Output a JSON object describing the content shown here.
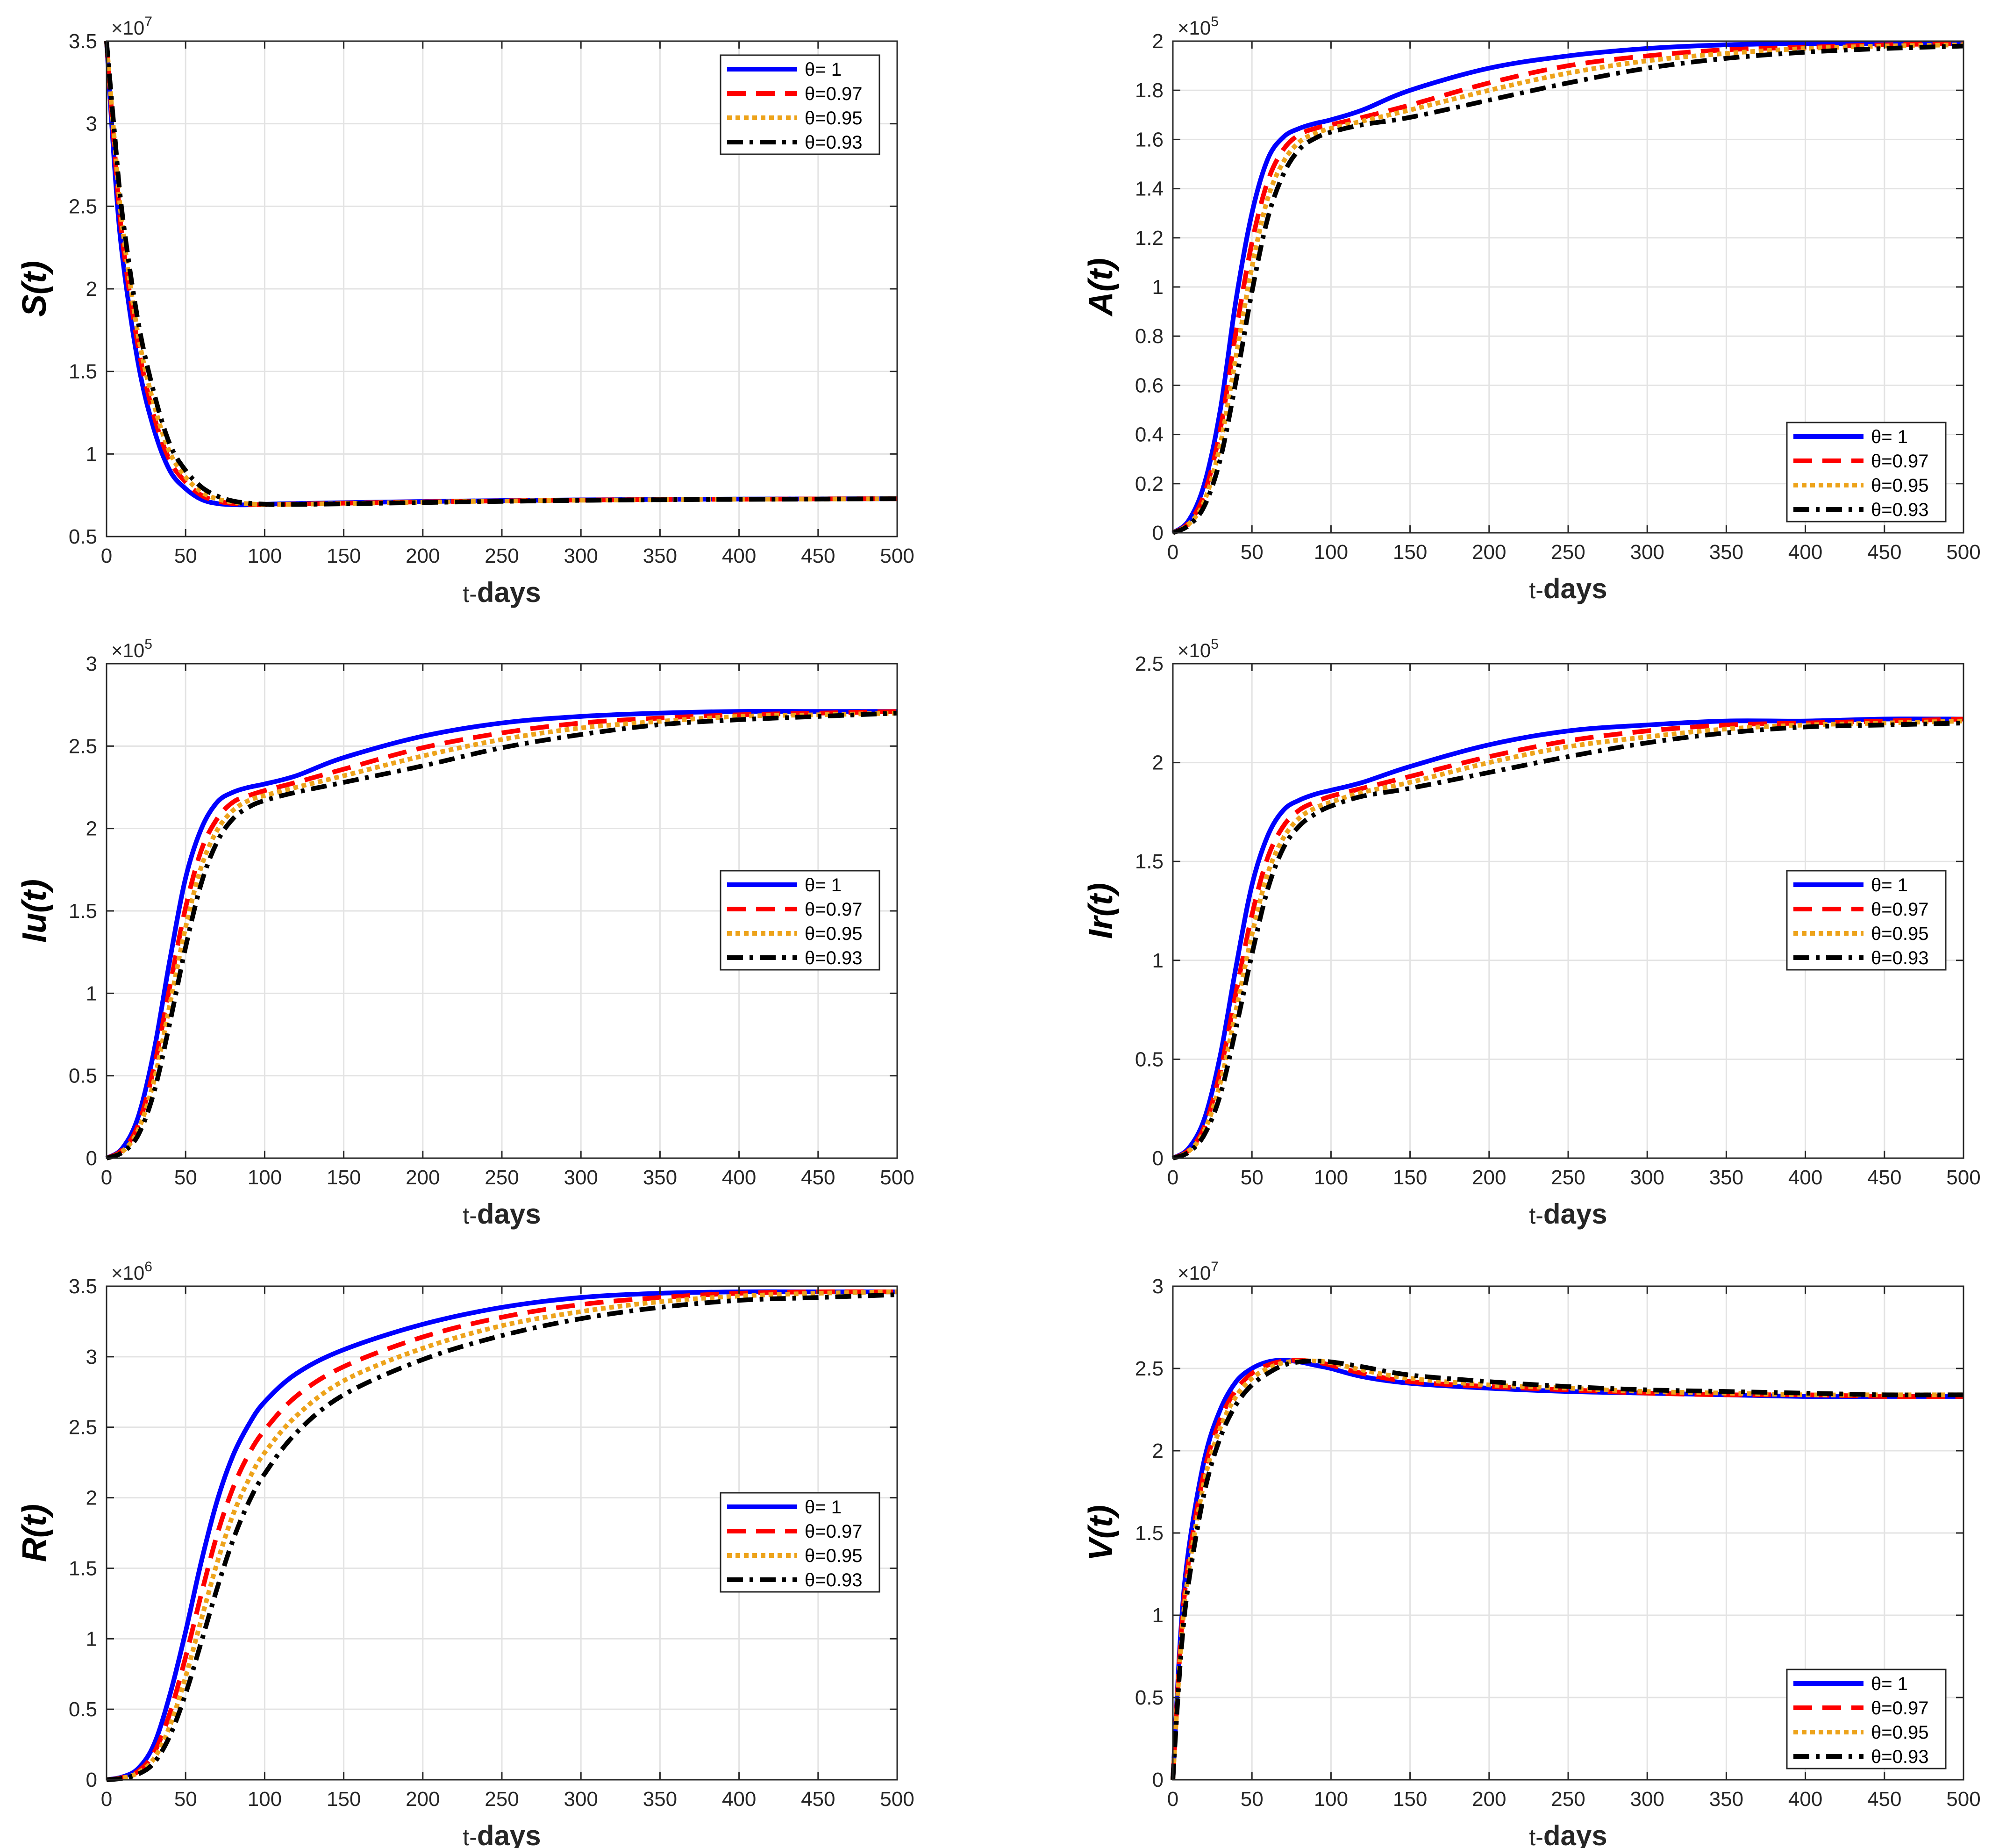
{
  "figure_title": "",
  "chart_data": [
    {
      "type": "line",
      "id": "S",
      "title": "",
      "ylabel": "S(t)",
      "xlabel_prefix": "t-",
      "xlabel_bold": "days",
      "exponent_label": "×10",
      "exponent_power": "7",
      "ylim": [
        0.5,
        3.5
      ],
      "yticks": [
        0.5,
        1,
        1.5,
        2,
        2.5,
        3,
        3.5
      ],
      "ytick_labels": [
        "0.5",
        "1",
        "1.5",
        "2",
        "2.5",
        "3",
        "3.5"
      ],
      "xlim": [
        0,
        500
      ],
      "xticks": [
        0,
        50,
        100,
        150,
        200,
        250,
        300,
        350,
        400,
        450,
        500
      ],
      "xtick_labels": [
        "0",
        "50",
        "100",
        "150",
        "200",
        "250",
        "300",
        "350",
        "400",
        "450",
        "500"
      ],
      "grid": true,
      "legend_position": "top-right",
      "x": [
        0,
        5,
        10,
        20,
        30,
        40,
        50,
        60,
        70,
        80,
        90,
        100,
        110,
        150,
        200,
        250,
        300,
        350,
        400,
        450,
        500
      ],
      "series": [
        {
          "name": "θ=   1",
          "values": [
            3.5,
            2.75,
            2.2,
            1.55,
            1.15,
            0.9,
            0.79,
            0.725,
            0.7,
            0.693,
            0.692,
            0.695,
            0.698,
            0.705,
            0.712,
            0.718,
            0.722,
            0.725,
            0.727,
            0.728,
            0.729
          ]
        },
        {
          "name": "θ=0.97",
          "values": [
            3.5,
            2.85,
            2.3,
            1.65,
            1.23,
            0.96,
            0.83,
            0.75,
            0.715,
            0.7,
            0.694,
            0.693,
            0.695,
            0.702,
            0.71,
            0.716,
            0.721,
            0.724,
            0.726,
            0.728,
            0.729
          ]
        },
        {
          "name": "θ=0.95",
          "values": [
            3.5,
            2.9,
            2.38,
            1.72,
            1.3,
            1.01,
            0.86,
            0.77,
            0.728,
            0.708,
            0.698,
            0.694,
            0.694,
            0.7,
            0.708,
            0.715,
            0.72,
            0.723,
            0.726,
            0.727,
            0.729
          ]
        },
        {
          "name": "θ=0.93",
          "values": [
            3.5,
            2.95,
            2.45,
            1.8,
            1.37,
            1.06,
            0.9,
            0.8,
            0.745,
            0.715,
            0.702,
            0.696,
            0.694,
            0.698,
            0.706,
            0.713,
            0.719,
            0.723,
            0.725,
            0.727,
            0.729
          ]
        }
      ]
    },
    {
      "type": "line",
      "id": "A",
      "title": "",
      "ylabel": "A(t)",
      "xlabel_prefix": "t-",
      "xlabel_bold": "days",
      "exponent_label": "×10",
      "exponent_power": "5",
      "ylim": [
        0,
        2
      ],
      "yticks": [
        0,
        0.2,
        0.4,
        0.6,
        0.8,
        1,
        1.2,
        1.4,
        1.6,
        1.8,
        2
      ],
      "ytick_labels": [
        "0",
        "0.2",
        "0.4",
        "0.6",
        "0.8",
        "1",
        "1.2",
        "1.4",
        "1.6",
        "1.8",
        "2"
      ],
      "xlim": [
        0,
        500
      ],
      "xticks": [
        0,
        50,
        100,
        150,
        200,
        250,
        300,
        350,
        400,
        450,
        500
      ],
      "xtick_labels": [
        "0",
        "50",
        "100",
        "150",
        "200",
        "250",
        "300",
        "350",
        "400",
        "450",
        "500"
      ],
      "grid": true,
      "legend_position": "bottom-right",
      "x": [
        0,
        10,
        20,
        30,
        40,
        50,
        60,
        70,
        80,
        90,
        100,
        120,
        150,
        200,
        250,
        300,
        350,
        400,
        450,
        500
      ],
      "series": [
        {
          "name": "θ=   1",
          "values": [
            0,
            0.05,
            0.2,
            0.5,
            0.95,
            1.3,
            1.52,
            1.61,
            1.645,
            1.665,
            1.68,
            1.72,
            1.8,
            1.89,
            1.94,
            1.97,
            1.985,
            1.99,
            1.99,
            1.99
          ]
        },
        {
          "name": "θ=0.97",
          "values": [
            0,
            0.04,
            0.16,
            0.42,
            0.82,
            1.18,
            1.43,
            1.56,
            1.62,
            1.645,
            1.66,
            1.69,
            1.74,
            1.83,
            1.9,
            1.94,
            1.965,
            1.975,
            1.985,
            1.99
          ]
        },
        {
          "name": "θ=0.95",
          "values": [
            0,
            0.035,
            0.13,
            0.36,
            0.72,
            1.08,
            1.36,
            1.51,
            1.59,
            1.625,
            1.645,
            1.675,
            1.72,
            1.8,
            1.87,
            1.92,
            1.95,
            1.97,
            1.98,
            1.985
          ]
        },
        {
          "name": "θ=0.93",
          "values": [
            0,
            0.03,
            0.11,
            0.3,
            0.62,
            0.98,
            1.28,
            1.46,
            1.56,
            1.605,
            1.63,
            1.66,
            1.69,
            1.76,
            1.83,
            1.89,
            1.93,
            1.955,
            1.97,
            1.98
          ]
        }
      ]
    },
    {
      "type": "line",
      "id": "Iu",
      "title": "",
      "ylabel": "Iu(t)",
      "xlabel_prefix": "t-",
      "xlabel_bold": "days",
      "exponent_label": "×10",
      "exponent_power": "5",
      "ylim": [
        0,
        3
      ],
      "yticks": [
        0,
        0.5,
        1,
        1.5,
        2,
        2.5,
        3
      ],
      "ytick_labels": [
        "0",
        "0.5",
        "1",
        "1.5",
        "2",
        "2.5",
        "3"
      ],
      "xlim": [
        0,
        500
      ],
      "xticks": [
        0,
        50,
        100,
        150,
        200,
        250,
        300,
        350,
        400,
        450,
        500
      ],
      "xtick_labels": [
        "0",
        "50",
        "100",
        "150",
        "200",
        "250",
        "300",
        "350",
        "400",
        "450",
        "500"
      ],
      "grid": true,
      "legend_position": "right",
      "x": [
        0,
        10,
        20,
        30,
        40,
        50,
        60,
        70,
        80,
        90,
        100,
        120,
        150,
        200,
        250,
        300,
        350,
        400,
        450,
        500
      ],
      "series": [
        {
          "name": "θ=   1",
          "values": [
            0,
            0.06,
            0.25,
            0.65,
            1.2,
            1.7,
            2.0,
            2.16,
            2.22,
            2.25,
            2.27,
            2.32,
            2.43,
            2.56,
            2.64,
            2.68,
            2.7,
            2.71,
            2.71,
            2.71
          ]
        },
        {
          "name": "θ=0.97",
          "values": [
            0,
            0.05,
            0.2,
            0.55,
            1.04,
            1.52,
            1.87,
            2.06,
            2.16,
            2.2,
            2.23,
            2.28,
            2.36,
            2.49,
            2.58,
            2.64,
            2.67,
            2.69,
            2.7,
            2.71
          ]
        },
        {
          "name": "θ=0.95",
          "values": [
            0,
            0.04,
            0.17,
            0.47,
            0.93,
            1.4,
            1.77,
            1.99,
            2.11,
            2.17,
            2.2,
            2.25,
            2.32,
            2.44,
            2.54,
            2.61,
            2.65,
            2.68,
            2.69,
            2.7
          ]
        },
        {
          "name": "θ=0.93",
          "values": [
            0,
            0.035,
            0.14,
            0.4,
            0.82,
            1.28,
            1.67,
            1.92,
            2.06,
            2.13,
            2.17,
            2.22,
            2.28,
            2.38,
            2.49,
            2.57,
            2.63,
            2.66,
            2.68,
            2.7
          ]
        }
      ]
    },
    {
      "type": "line",
      "id": "Ir",
      "title": "",
      "ylabel": "Ir(t)",
      "xlabel_prefix": "t-",
      "xlabel_bold": "days",
      "exponent_label": "×10",
      "exponent_power": "5",
      "ylim": [
        0,
        2.5
      ],
      "yticks": [
        0,
        0.5,
        1,
        1.5,
        2,
        2.5
      ],
      "ytick_labels": [
        "0",
        "0.5",
        "1",
        "1.5",
        "2",
        "2.5"
      ],
      "xlim": [
        0,
        500
      ],
      "xticks": [
        0,
        50,
        100,
        150,
        200,
        250,
        300,
        350,
        400,
        450,
        500
      ],
      "xtick_labels": [
        "0",
        "50",
        "100",
        "150",
        "200",
        "250",
        "300",
        "350",
        "400",
        "450",
        "500"
      ],
      "grid": true,
      "legend_position": "right",
      "x": [
        0,
        10,
        20,
        30,
        40,
        50,
        60,
        70,
        80,
        90,
        100,
        120,
        150,
        200,
        250,
        300,
        350,
        400,
        450,
        500
      ],
      "series": [
        {
          "name": "θ=   1",
          "values": [
            0,
            0.05,
            0.2,
            0.52,
            0.97,
            1.38,
            1.63,
            1.76,
            1.81,
            1.84,
            1.86,
            1.9,
            1.98,
            2.09,
            2.16,
            2.19,
            2.21,
            2.21,
            2.22,
            2.22
          ]
        },
        {
          "name": "θ=0.97",
          "values": [
            0,
            0.04,
            0.16,
            0.44,
            0.84,
            1.23,
            1.52,
            1.68,
            1.76,
            1.8,
            1.83,
            1.87,
            1.93,
            2.03,
            2.11,
            2.16,
            2.19,
            2.2,
            2.21,
            2.22
          ]
        },
        {
          "name": "θ=0.95",
          "values": [
            0,
            0.035,
            0.14,
            0.38,
            0.75,
            1.13,
            1.44,
            1.62,
            1.72,
            1.77,
            1.8,
            1.85,
            1.9,
            2.0,
            2.08,
            2.13,
            2.17,
            2.19,
            2.2,
            2.21
          ]
        },
        {
          "name": "θ=0.93",
          "values": [
            0,
            0.03,
            0.12,
            0.32,
            0.66,
            1.03,
            1.36,
            1.57,
            1.68,
            1.74,
            1.78,
            1.83,
            1.87,
            1.95,
            2.03,
            2.1,
            2.15,
            2.18,
            2.19,
            2.2
          ]
        }
      ]
    },
    {
      "type": "line",
      "id": "R",
      "title": "",
      "ylabel": "R(t)",
      "xlabel_prefix": "t-",
      "xlabel_bold": "days",
      "exponent_label": "×10",
      "exponent_power": "6",
      "ylim": [
        0,
        3.5
      ],
      "yticks": [
        0,
        0.5,
        1,
        1.5,
        2,
        2.5,
        3,
        3.5
      ],
      "ytick_labels": [
        "0",
        "0.5",
        "1",
        "1.5",
        "2",
        "2.5",
        "3",
        "3.5"
      ],
      "xlim": [
        0,
        500
      ],
      "xticks": [
        0,
        50,
        100,
        150,
        200,
        250,
        300,
        350,
        400,
        450,
        500
      ],
      "xtick_labels": [
        "0",
        "50",
        "100",
        "150",
        "200",
        "250",
        "300",
        "350",
        "400",
        "450",
        "500"
      ],
      "grid": true,
      "legend_position": "right",
      "x": [
        0,
        10,
        20,
        30,
        40,
        50,
        60,
        70,
        80,
        90,
        100,
        120,
        150,
        200,
        250,
        300,
        350,
        400,
        450,
        500
      ],
      "series": [
        {
          "name": "θ=   1",
          "values": [
            0,
            0.02,
            0.08,
            0.25,
            0.6,
            1.05,
            1.55,
            1.98,
            2.3,
            2.52,
            2.68,
            2.88,
            3.05,
            3.23,
            3.35,
            3.42,
            3.45,
            3.46,
            3.46,
            3.46
          ]
        },
        {
          "name": "θ=0.97",
          "values": [
            0,
            0.015,
            0.06,
            0.19,
            0.47,
            0.87,
            1.32,
            1.74,
            2.07,
            2.31,
            2.48,
            2.72,
            2.93,
            3.14,
            3.28,
            3.37,
            3.42,
            3.45,
            3.46,
            3.46
          ]
        },
        {
          "name": "θ=0.95",
          "values": [
            0,
            0.012,
            0.05,
            0.15,
            0.38,
            0.73,
            1.14,
            1.54,
            1.88,
            2.13,
            2.32,
            2.58,
            2.83,
            3.06,
            3.22,
            3.32,
            3.39,
            3.43,
            3.45,
            3.46
          ]
        },
        {
          "name": "θ=0.93",
          "values": [
            0,
            0.01,
            0.04,
            0.12,
            0.31,
            0.61,
            0.98,
            1.36,
            1.7,
            1.97,
            2.17,
            2.46,
            2.73,
            2.98,
            3.15,
            3.27,
            3.35,
            3.4,
            3.42,
            3.44
          ]
        }
      ]
    },
    {
      "type": "line",
      "id": "V",
      "title": "",
      "ylabel": "V(t)",
      "xlabel_prefix": "t-",
      "xlabel_bold": "days",
      "exponent_label": "×10",
      "exponent_power": "7",
      "ylim": [
        0,
        3
      ],
      "yticks": [
        0,
        0.5,
        1,
        1.5,
        2,
        2.5,
        3
      ],
      "ytick_labels": [
        "0",
        "0.5",
        "1",
        "1.5",
        "2",
        "2.5",
        "3"
      ],
      "xlim": [
        0,
        500
      ],
      "xticks": [
        0,
        50,
        100,
        150,
        200,
        250,
        300,
        350,
        400,
        450,
        500
      ],
      "xtick_labels": [
        "0",
        "50",
        "100",
        "150",
        "200",
        "250",
        "300",
        "350",
        "400",
        "450",
        "500"
      ],
      "grid": true,
      "legend_position": "bottom-right",
      "x": [
        0,
        5,
        10,
        20,
        30,
        40,
        50,
        60,
        70,
        80,
        90,
        100,
        120,
        150,
        200,
        250,
        300,
        350,
        400,
        450,
        500
      ],
      "series": [
        {
          "name": "θ=   1",
          "values": [
            0,
            0.9,
            1.4,
            1.95,
            2.25,
            2.42,
            2.5,
            2.54,
            2.55,
            2.54,
            2.52,
            2.5,
            2.45,
            2.41,
            2.38,
            2.36,
            2.35,
            2.34,
            2.33,
            2.33,
            2.33
          ]
        },
        {
          "name": "θ=0.97",
          "values": [
            0,
            0.85,
            1.33,
            1.88,
            2.19,
            2.37,
            2.47,
            2.52,
            2.545,
            2.55,
            2.54,
            2.52,
            2.47,
            2.42,
            2.39,
            2.37,
            2.35,
            2.34,
            2.34,
            2.33,
            2.33
          ]
        },
        {
          "name": "θ=0.95",
          "values": [
            0,
            0.8,
            1.27,
            1.82,
            2.14,
            2.33,
            2.44,
            2.5,
            2.535,
            2.545,
            2.545,
            2.535,
            2.49,
            2.44,
            2.4,
            2.38,
            2.36,
            2.35,
            2.34,
            2.34,
            2.34
          ]
        },
        {
          "name": "θ=0.93",
          "values": [
            0,
            0.75,
            1.2,
            1.75,
            2.08,
            2.28,
            2.4,
            2.47,
            2.52,
            2.54,
            2.545,
            2.54,
            2.51,
            2.46,
            2.42,
            2.39,
            2.37,
            2.36,
            2.35,
            2.34,
            2.34
          ]
        }
      ]
    }
  ],
  "series_colors": [
    "#0000ff",
    "#ff0000",
    "#eda31b",
    "#000000"
  ],
  "legend_symbol": "θ"
}
